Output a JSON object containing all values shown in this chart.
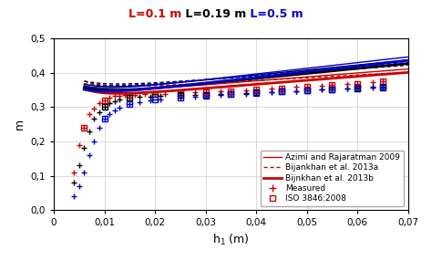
{
  "xlabel": "h$_1$ (m)",
  "ylabel": "m",
  "xlim": [
    0,
    0.07
  ],
  "ylim": [
    0.0,
    0.5
  ],
  "xticks": [
    0,
    0.01,
    0.02,
    0.03,
    0.04,
    0.05,
    0.06,
    0.07
  ],
  "yticks": [
    0.0,
    0.1,
    0.2,
    0.3,
    0.4,
    0.5
  ],
  "xtick_labels": [
    "0",
    "0,01",
    "0,02",
    "0,03",
    "0,04",
    "0,05",
    "0,06",
    "0,07"
  ],
  "ytick_labels": [
    "0,0",
    "0,1",
    "0,2",
    "0,3",
    "0,4",
    "0,5"
  ],
  "title_parts": [
    {
      "text": "L=0.1 m",
      "color": "#cc0000"
    },
    {
      "text": " L=0.19 m",
      "color": "#000000"
    },
    {
      "text": " L=0.5 m",
      "color": "#0000cc"
    }
  ],
  "L_colors": [
    "#cc0000",
    "#000000",
    "#0000cc"
  ],
  "L_values": [
    0.1,
    0.19,
    0.5
  ],
  "background_color": "#ffffff",
  "grid_color": "#cccccc",
  "legend_labels": [
    "Azimi and Rajaratman 2009",
    "Bijankhan et al. 2013a",
    "Bijnkhan et al. 2013b",
    "Measured",
    "ISO 3846:2008"
  ],
  "meas_red_h": [
    0.004,
    0.005,
    0.006,
    0.007,
    0.008,
    0.009,
    0.01,
    0.011,
    0.012,
    0.013,
    0.014,
    0.015,
    0.016,
    0.018,
    0.02,
    0.022,
    0.025,
    0.028,
    0.03,
    0.033,
    0.035,
    0.038,
    0.04,
    0.043,
    0.045,
    0.048,
    0.05,
    0.053,
    0.055,
    0.058,
    0.06,
    0.063,
    0.065
  ],
  "meas_red_m": [
    0.11,
    0.19,
    0.24,
    0.28,
    0.295,
    0.31,
    0.32,
    0.327,
    0.332,
    0.333,
    0.335,
    0.335,
    0.336,
    0.337,
    0.338,
    0.339,
    0.34,
    0.342,
    0.343,
    0.345,
    0.347,
    0.349,
    0.351,
    0.353,
    0.355,
    0.358,
    0.36,
    0.362,
    0.364,
    0.366,
    0.368,
    0.371,
    0.374
  ],
  "meas_black_h": [
    0.004,
    0.005,
    0.006,
    0.007,
    0.008,
    0.009,
    0.01,
    0.011,
    0.012,
    0.013,
    0.015,
    0.017,
    0.019,
    0.021,
    0.025,
    0.028,
    0.03,
    0.033,
    0.035,
    0.038,
    0.04,
    0.043,
    0.045,
    0.048,
    0.05,
    0.053,
    0.055,
    0.058,
    0.06,
    0.063,
    0.065
  ],
  "meas_black_m": [
    0.08,
    0.13,
    0.18,
    0.23,
    0.265,
    0.285,
    0.3,
    0.31,
    0.317,
    0.321,
    0.326,
    0.329,
    0.331,
    0.332,
    0.334,
    0.335,
    0.336,
    0.338,
    0.339,
    0.341,
    0.343,
    0.344,
    0.346,
    0.347,
    0.349,
    0.35,
    0.351,
    0.353,
    0.354,
    0.356,
    0.357
  ],
  "meas_blue_h": [
    0.004,
    0.005,
    0.006,
    0.007,
    0.008,
    0.009,
    0.01,
    0.011,
    0.012,
    0.013,
    0.015,
    0.017,
    0.019,
    0.021,
    0.025,
    0.028,
    0.03,
    0.033,
    0.035,
    0.038,
    0.04,
    0.043,
    0.045,
    0.048,
    0.05,
    0.053,
    0.055,
    0.058,
    0.06,
    0.063,
    0.065
  ],
  "meas_blue_m": [
    0.04,
    0.07,
    0.11,
    0.16,
    0.2,
    0.24,
    0.265,
    0.28,
    0.29,
    0.298,
    0.308,
    0.315,
    0.32,
    0.323,
    0.328,
    0.331,
    0.333,
    0.335,
    0.337,
    0.339,
    0.341,
    0.343,
    0.345,
    0.347,
    0.349,
    0.351,
    0.352,
    0.354,
    0.356,
    0.358,
    0.36
  ],
  "iso_red_h": [
    0.006,
    0.01,
    0.015,
    0.02,
    0.025,
    0.03,
    0.035,
    0.04,
    0.045,
    0.05,
    0.055,
    0.06,
    0.065
  ],
  "iso_red_m": [
    0.24,
    0.32,
    0.335,
    0.338,
    0.34,
    0.343,
    0.347,
    0.351,
    0.355,
    0.36,
    0.364,
    0.368,
    0.374
  ],
  "iso_black_h": [
    0.01,
    0.015,
    0.02,
    0.025,
    0.03,
    0.035,
    0.04,
    0.045,
    0.05,
    0.055,
    0.06,
    0.065
  ],
  "iso_black_m": [
    0.3,
    0.326,
    0.331,
    0.334,
    0.336,
    0.339,
    0.343,
    0.346,
    0.349,
    0.351,
    0.354,
    0.357
  ],
  "iso_blue_h": [
    0.01,
    0.015,
    0.02,
    0.025,
    0.03,
    0.035,
    0.04,
    0.045,
    0.05,
    0.055,
    0.06,
    0.065
  ],
  "iso_blue_m": [
    0.265,
    0.308,
    0.323,
    0.328,
    0.333,
    0.337,
    0.341,
    0.345,
    0.349,
    0.352,
    0.356,
    0.36
  ]
}
